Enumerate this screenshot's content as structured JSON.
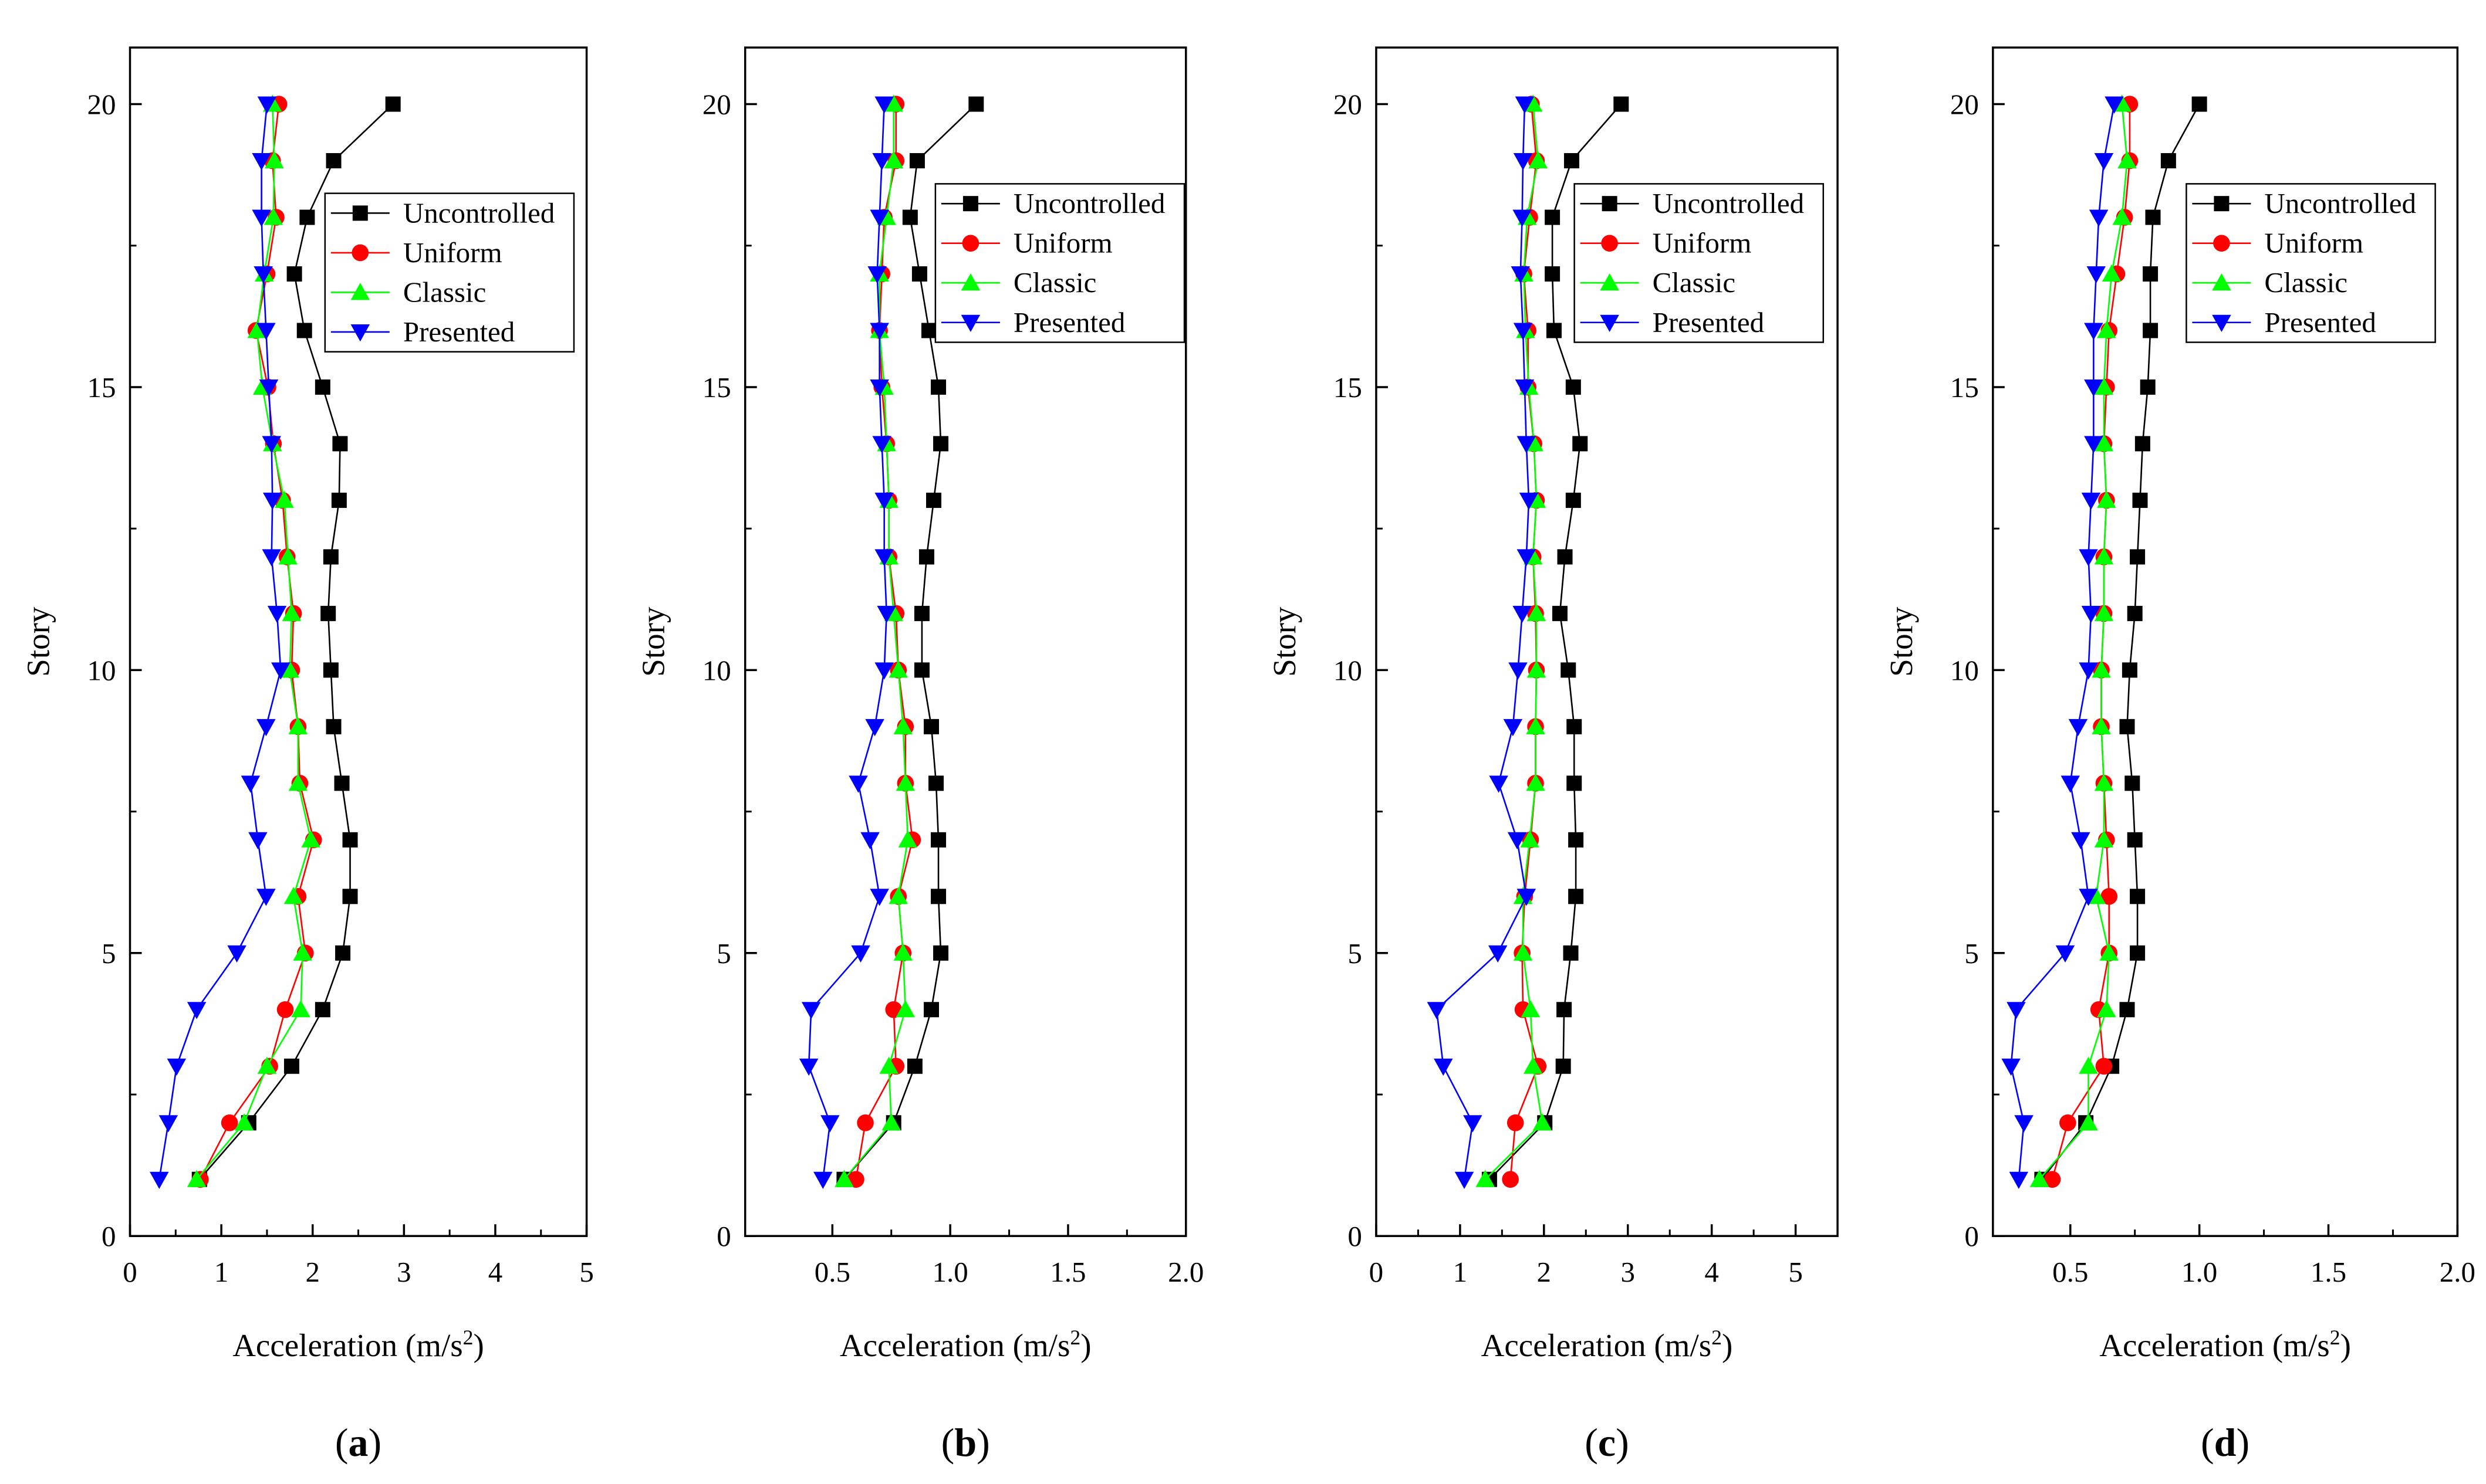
{
  "chart_data": [
    {
      "type": "line",
      "panel_label": "a",
      "xlabel_text": "Acceleration (m/s",
      "xlabel_sup": "2",
      "xlabel_close": ")",
      "ylabel": "Story",
      "xlim": [
        0,
        5
      ],
      "ylim": [
        0,
        21
      ],
      "xticks": [
        0,
        1,
        2,
        3,
        4,
        5
      ],
      "xtick_labels": [
        "0",
        "1",
        "2",
        "3",
        "4",
        "5"
      ],
      "yticks": [
        0,
        5,
        10,
        15,
        20
      ],
      "ytick_labels": [
        "0",
        "5",
        "10",
        "15",
        "20"
      ],
      "legend_position": "upper-right",
      "y": [
        1,
        2,
        3,
        4,
        5,
        6,
        7,
        8,
        9,
        10,
        11,
        12,
        13,
        14,
        15,
        16,
        17,
        18,
        19,
        20
      ],
      "series": [
        {
          "name": "Uncontrolled",
          "color": "#000000",
          "marker": "square",
          "x": [
            0.76,
            1.3,
            1.77,
            2.11,
            2.33,
            2.41,
            2.41,
            2.32,
            2.23,
            2.2,
            2.17,
            2.2,
            2.29,
            2.3,
            2.11,
            1.91,
            1.8,
            1.94,
            2.23,
            2.88
          ]
        },
        {
          "name": "Uniform",
          "color": "#ff0000",
          "marker": "circle",
          "x": [
            0.77,
            1.09,
            1.53,
            1.7,
            1.92,
            1.84,
            2.01,
            1.86,
            1.84,
            1.77,
            1.79,
            1.72,
            1.67,
            1.57,
            1.51,
            1.38,
            1.5,
            1.6,
            1.56,
            1.63
          ]
        },
        {
          "name": "Classic",
          "color": "#00ff00",
          "marker": "triangle-up",
          "x": [
            0.73,
            1.25,
            1.5,
            1.87,
            1.89,
            1.79,
            1.98,
            1.84,
            1.84,
            1.75,
            1.77,
            1.73,
            1.69,
            1.56,
            1.45,
            1.39,
            1.47,
            1.57,
            1.58,
            1.56
          ]
        },
        {
          "name": "Presented",
          "color": "#0000ff",
          "marker": "triangle-down",
          "x": [
            0.32,
            0.42,
            0.51,
            0.73,
            1.17,
            1.49,
            1.4,
            1.32,
            1.49,
            1.65,
            1.61,
            1.55,
            1.56,
            1.55,
            1.52,
            1.49,
            1.46,
            1.44,
            1.44,
            1.5
          ]
        }
      ]
    },
    {
      "type": "line",
      "panel_label": "b",
      "xlabel_text": "Acceleration (m/s",
      "xlabel_sup": "2",
      "xlabel_close": ")",
      "ylabel": "Story",
      "xlim": [
        0.13,
        2.0
      ],
      "ylim": [
        0,
        21
      ],
      "xticks": [
        0.5,
        1.0,
        1.5,
        2.0
      ],
      "xtick_labels": [
        "0.5",
        "1.0",
        "1.5",
        "2.0"
      ],
      "yticks": [
        0,
        5,
        10,
        15,
        20
      ],
      "ytick_labels": [
        "0",
        "5",
        "10",
        "15",
        "20"
      ],
      "legend_position": "upper-right",
      "y": [
        1,
        2,
        3,
        4,
        5,
        6,
        7,
        8,
        9,
        10,
        11,
        12,
        13,
        14,
        15,
        16,
        17,
        18,
        19,
        20
      ],
      "series": [
        {
          "name": "Uncontrolled",
          "color": "#000000",
          "marker": "square",
          "x": [
            0.55,
            0.76,
            0.85,
            0.92,
            0.96,
            0.95,
            0.95,
            0.94,
            0.92,
            0.88,
            0.88,
            0.9,
            0.93,
            0.96,
            0.95,
            0.91,
            0.87,
            0.83,
            0.86,
            1.11
          ]
        },
        {
          "name": "Uniform",
          "color": "#ff0000",
          "marker": "circle",
          "x": [
            0.6,
            0.64,
            0.77,
            0.76,
            0.8,
            0.78,
            0.84,
            0.81,
            0.81,
            0.78,
            0.77,
            0.74,
            0.74,
            0.73,
            0.71,
            0.7,
            0.71,
            0.72,
            0.77,
            0.77
          ]
        },
        {
          "name": "Classic",
          "color": "#00ff00",
          "marker": "triangle-up",
          "x": [
            0.55,
            0.75,
            0.74,
            0.81,
            0.8,
            0.78,
            0.82,
            0.81,
            0.8,
            0.78,
            0.76,
            0.74,
            0.74,
            0.73,
            0.72,
            0.7,
            0.7,
            0.73,
            0.76,
            0.76
          ]
        },
        {
          "name": "Presented",
          "color": "#0000ff",
          "marker": "triangle-down",
          "x": [
            0.46,
            0.49,
            0.4,
            0.41,
            0.62,
            0.7,
            0.66,
            0.61,
            0.68,
            0.72,
            0.73,
            0.72,
            0.72,
            0.71,
            0.7,
            0.7,
            0.69,
            0.7,
            0.71,
            0.72
          ]
        }
      ]
    },
    {
      "type": "line",
      "panel_label": "c",
      "xlabel_text": "Acceleration (m/s",
      "xlabel_sup": "2",
      "xlabel_close": ")",
      "ylabel": "Story",
      "xlim": [
        0,
        5.5
      ],
      "ylim": [
        0,
        21
      ],
      "xticks": [
        0,
        1,
        2,
        3,
        4,
        5
      ],
      "xtick_labels": [
        "0",
        "1",
        "2",
        "3",
        "4",
        "5"
      ],
      "yticks": [
        0,
        5,
        10,
        15,
        20
      ],
      "ytick_labels": [
        "0",
        "5",
        "10",
        "15",
        "20"
      ],
      "legend_position": "upper-right",
      "y": [
        1,
        2,
        3,
        4,
        5,
        6,
        7,
        8,
        9,
        10,
        11,
        12,
        13,
        14,
        15,
        16,
        17,
        18,
        19,
        20
      ],
      "series": [
        {
          "name": "Uncontrolled",
          "color": "#000000",
          "marker": "square",
          "x": [
            1.35,
            2.01,
            2.23,
            2.24,
            2.32,
            2.38,
            2.38,
            2.36,
            2.36,
            2.29,
            2.19,
            2.25,
            2.35,
            2.43,
            2.35,
            2.12,
            2.1,
            2.1,
            2.33,
            2.92
          ]
        },
        {
          "name": "Uniform",
          "color": "#ff0000",
          "marker": "circle",
          "x": [
            1.6,
            1.66,
            1.93,
            1.75,
            1.74,
            1.77,
            1.84,
            1.9,
            1.9,
            1.91,
            1.9,
            1.87,
            1.91,
            1.88,
            1.81,
            1.81,
            1.76,
            1.83,
            1.91,
            1.85
          ]
        },
        {
          "name": "Classic",
          "color": "#00ff00",
          "marker": "triangle-up",
          "x": [
            1.3,
            1.98,
            1.87,
            1.84,
            1.75,
            1.75,
            1.83,
            1.9,
            1.9,
            1.91,
            1.91,
            1.87,
            1.91,
            1.88,
            1.82,
            1.78,
            1.76,
            1.8,
            1.93,
            1.87
          ]
        },
        {
          "name": "Presented",
          "color": "#0000ff",
          "marker": "triangle-down",
          "x": [
            1.05,
            1.15,
            0.8,
            0.72,
            1.45,
            1.79,
            1.68,
            1.46,
            1.63,
            1.69,
            1.74,
            1.79,
            1.82,
            1.79,
            1.77,
            1.75,
            1.72,
            1.74,
            1.75,
            1.77
          ]
        }
      ]
    },
    {
      "type": "line",
      "panel_label": "d",
      "xlabel_text": "Acceleration (m/s",
      "xlabel_sup": "2",
      "xlabel_close": ")",
      "ylabel": "Story",
      "xlim": [
        0.2,
        2.0
      ],
      "ylim": [
        0,
        21
      ],
      "xticks": [
        0.5,
        1.0,
        1.5,
        2.0
      ],
      "xtick_labels": [
        "0.5",
        "1.0",
        "1.5",
        "2.0"
      ],
      "yticks": [
        0,
        5,
        10,
        15,
        20
      ],
      "ytick_labels": [
        "0",
        "5",
        "10",
        "15",
        "20"
      ],
      "legend_position": "upper-right",
      "y": [
        1,
        2,
        3,
        4,
        5,
        6,
        7,
        8,
        9,
        10,
        11,
        12,
        13,
        14,
        15,
        16,
        17,
        18,
        19,
        20
      ],
      "series": [
        {
          "name": "Uncontrolled",
          "color": "#000000",
          "marker": "square",
          "x": [
            0.39,
            0.56,
            0.66,
            0.72,
            0.76,
            0.76,
            0.75,
            0.74,
            0.72,
            0.73,
            0.75,
            0.76,
            0.77,
            0.78,
            0.8,
            0.81,
            0.81,
            0.82,
            0.88,
            1.0
          ]
        },
        {
          "name": "Uniform",
          "color": "#ff0000",
          "marker": "circle",
          "x": [
            0.43,
            0.49,
            0.63,
            0.61,
            0.65,
            0.65,
            0.64,
            0.63,
            0.62,
            0.62,
            0.63,
            0.63,
            0.64,
            0.63,
            0.64,
            0.65,
            0.68,
            0.71,
            0.73,
            0.73
          ]
        },
        {
          "name": "Classic",
          "color": "#00ff00",
          "marker": "triangle-up",
          "x": [
            0.38,
            0.57,
            0.57,
            0.64,
            0.65,
            0.6,
            0.63,
            0.63,
            0.62,
            0.62,
            0.63,
            0.63,
            0.64,
            0.63,
            0.63,
            0.64,
            0.66,
            0.7,
            0.72,
            0.7
          ]
        },
        {
          "name": "Presented",
          "color": "#0000ff",
          "marker": "triangle-down",
          "x": [
            0.3,
            0.32,
            0.27,
            0.29,
            0.48,
            0.57,
            0.54,
            0.5,
            0.53,
            0.57,
            0.58,
            0.57,
            0.58,
            0.59,
            0.59,
            0.59,
            0.6,
            0.61,
            0.63,
            0.67
          ]
        }
      ]
    }
  ]
}
